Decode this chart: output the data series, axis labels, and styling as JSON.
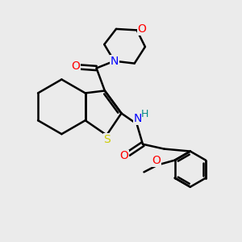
{
  "bg_color": "#ebebeb",
  "bond_color": "#000000",
  "bond_width": 1.8,
  "S_color": "#cccc00",
  "N_color": "#0000ff",
  "O_color": "#ff0000",
  "H_color": "#008888",
  "figsize": [
    3.0,
    3.0
  ],
  "dpi": 100,
  "xlim": [
    0,
    10
  ],
  "ylim": [
    0,
    10
  ]
}
